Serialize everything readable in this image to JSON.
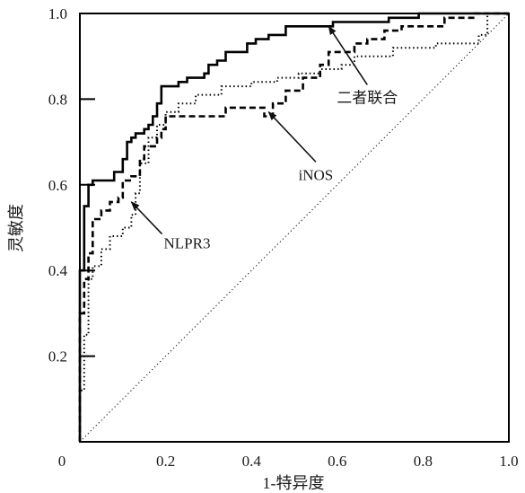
{
  "chart_data": {
    "type": "line",
    "xlabel": "1-特异度",
    "ylabel": "灵敏度",
    "xlim": [
      0,
      1
    ],
    "ylim": [
      0,
      1
    ],
    "x_ticks": [
      "0",
      "0.2",
      "0.4",
      "0.6",
      "0.8",
      "1.0"
    ],
    "y_ticks": [
      "0.2",
      "0.4",
      "0.6",
      "0.8",
      "1.0"
    ],
    "grid": false,
    "legend": "none",
    "series": [
      {
        "name": "二者联合",
        "style": "solid",
        "color": "#000000",
        "points": [
          [
            0,
            0
          ],
          [
            0,
            0.4
          ],
          [
            0.01,
            0.4
          ],
          [
            0.01,
            0.55
          ],
          [
            0.02,
            0.55
          ],
          [
            0.02,
            0.6
          ],
          [
            0.03,
            0.6
          ],
          [
            0.03,
            0.61
          ],
          [
            0.08,
            0.61
          ],
          [
            0.08,
            0.63
          ],
          [
            0.1,
            0.63
          ],
          [
            0.1,
            0.66
          ],
          [
            0.11,
            0.66
          ],
          [
            0.11,
            0.7
          ],
          [
            0.12,
            0.7
          ],
          [
            0.12,
            0.71
          ],
          [
            0.13,
            0.71
          ],
          [
            0.13,
            0.72
          ],
          [
            0.15,
            0.72
          ],
          [
            0.15,
            0.73
          ],
          [
            0.16,
            0.73
          ],
          [
            0.16,
            0.74
          ],
          [
            0.17,
            0.74
          ],
          [
            0.17,
            0.76
          ],
          [
            0.18,
            0.76
          ],
          [
            0.18,
            0.79
          ],
          [
            0.19,
            0.79
          ],
          [
            0.19,
            0.83
          ],
          [
            0.23,
            0.83
          ],
          [
            0.23,
            0.84
          ],
          [
            0.25,
            0.84
          ],
          [
            0.25,
            0.85
          ],
          [
            0.29,
            0.85
          ],
          [
            0.29,
            0.86
          ],
          [
            0.3,
            0.86
          ],
          [
            0.3,
            0.88
          ],
          [
            0.32,
            0.88
          ],
          [
            0.32,
            0.89
          ],
          [
            0.34,
            0.89
          ],
          [
            0.34,
            0.91
          ],
          [
            0.39,
            0.91
          ],
          [
            0.39,
            0.93
          ],
          [
            0.41,
            0.93
          ],
          [
            0.41,
            0.94
          ],
          [
            0.44,
            0.94
          ],
          [
            0.44,
            0.95
          ],
          [
            0.48,
            0.95
          ],
          [
            0.48,
            0.97
          ],
          [
            0.59,
            0.97
          ],
          [
            0.59,
            0.98
          ],
          [
            0.72,
            0.98
          ],
          [
            0.72,
            0.99
          ],
          [
            0.79,
            0.99
          ],
          [
            0.79,
            1.0
          ],
          [
            1.0,
            1.0
          ]
        ]
      },
      {
        "name": "iNOS",
        "style": "dashed",
        "color": "#000000",
        "points": [
          [
            0,
            0
          ],
          [
            0,
            0.3
          ],
          [
            0.01,
            0.3
          ],
          [
            0.01,
            0.38
          ],
          [
            0.02,
            0.38
          ],
          [
            0.02,
            0.44
          ],
          [
            0.03,
            0.44
          ],
          [
            0.03,
            0.52
          ],
          [
            0.05,
            0.52
          ],
          [
            0.05,
            0.54
          ],
          [
            0.07,
            0.54
          ],
          [
            0.07,
            0.56
          ],
          [
            0.09,
            0.56
          ],
          [
            0.09,
            0.57
          ],
          [
            0.1,
            0.57
          ],
          [
            0.1,
            0.61
          ],
          [
            0.12,
            0.61
          ],
          [
            0.12,
            0.62
          ],
          [
            0.14,
            0.62
          ],
          [
            0.14,
            0.66
          ],
          [
            0.15,
            0.66
          ],
          [
            0.15,
            0.69
          ],
          [
            0.18,
            0.69
          ],
          [
            0.18,
            0.71
          ],
          [
            0.19,
            0.71
          ],
          [
            0.19,
            0.73
          ],
          [
            0.2,
            0.73
          ],
          [
            0.2,
            0.76
          ],
          [
            0.34,
            0.76
          ],
          [
            0.34,
            0.78
          ],
          [
            0.43,
            0.78
          ],
          [
            0.43,
            0.76
          ],
          [
            0.45,
            0.76
          ],
          [
            0.45,
            0.79
          ],
          [
            0.48,
            0.79
          ],
          [
            0.48,
            0.82
          ],
          [
            0.52,
            0.82
          ],
          [
            0.52,
            0.85
          ],
          [
            0.56,
            0.85
          ],
          [
            0.56,
            0.88
          ],
          [
            0.58,
            0.88
          ],
          [
            0.58,
            0.91
          ],
          [
            0.64,
            0.91
          ],
          [
            0.64,
            0.93
          ],
          [
            0.67,
            0.93
          ],
          [
            0.67,
            0.94
          ],
          [
            0.71,
            0.94
          ],
          [
            0.71,
            0.96
          ],
          [
            0.75,
            0.96
          ],
          [
            0.75,
            0.97
          ],
          [
            0.85,
            0.97
          ],
          [
            0.85,
            0.99
          ],
          [
            0.92,
            0.99
          ],
          [
            0.92,
            1.0
          ],
          [
            1.0,
            1.0
          ]
        ]
      },
      {
        "name": "NLPR3",
        "style": "dotted",
        "color": "#000000",
        "points": [
          [
            0,
            0
          ],
          [
            0,
            0.12
          ],
          [
            0.01,
            0.12
          ],
          [
            0.01,
            0.25
          ],
          [
            0.02,
            0.25
          ],
          [
            0.02,
            0.38
          ],
          [
            0.03,
            0.38
          ],
          [
            0.03,
            0.41
          ],
          [
            0.05,
            0.41
          ],
          [
            0.05,
            0.45
          ],
          [
            0.07,
            0.45
          ],
          [
            0.07,
            0.48
          ],
          [
            0.1,
            0.48
          ],
          [
            0.1,
            0.5
          ],
          [
            0.12,
            0.5
          ],
          [
            0.12,
            0.53
          ],
          [
            0.13,
            0.53
          ],
          [
            0.13,
            0.58
          ],
          [
            0.14,
            0.58
          ],
          [
            0.14,
            0.65
          ],
          [
            0.16,
            0.65
          ],
          [
            0.16,
            0.71
          ],
          [
            0.18,
            0.71
          ],
          [
            0.18,
            0.74
          ],
          [
            0.2,
            0.74
          ],
          [
            0.2,
            0.77
          ],
          [
            0.23,
            0.77
          ],
          [
            0.23,
            0.79
          ],
          [
            0.27,
            0.79
          ],
          [
            0.27,
            0.81
          ],
          [
            0.33,
            0.81
          ],
          [
            0.33,
            0.83
          ],
          [
            0.4,
            0.83
          ],
          [
            0.4,
            0.84
          ],
          [
            0.46,
            0.84
          ],
          [
            0.46,
            0.85
          ],
          [
            0.51,
            0.85
          ],
          [
            0.51,
            0.86
          ],
          [
            0.56,
            0.86
          ],
          [
            0.56,
            0.87
          ],
          [
            0.61,
            0.87
          ],
          [
            0.61,
            0.88
          ],
          [
            0.64,
            0.88
          ],
          [
            0.64,
            0.9
          ],
          [
            0.73,
            0.9
          ],
          [
            0.73,
            0.92
          ],
          [
            0.83,
            0.92
          ],
          [
            0.83,
            0.93
          ],
          [
            0.93,
            0.93
          ],
          [
            0.93,
            0.95
          ],
          [
            0.95,
            0.95
          ],
          [
            0.95,
            1.0
          ],
          [
            1.0,
            1.0
          ]
        ]
      },
      {
        "name": "reference",
        "style": "dotted-thin",
        "color": "#000000",
        "points": [
          [
            0,
            0
          ],
          [
            1,
            1
          ]
        ]
      }
    ],
    "annotations": [
      {
        "label": "二者联合",
        "series": "二者联合",
        "target": [
          0.58,
          0.97
        ],
        "text_at": [
          0.67,
          0.8
        ]
      },
      {
        "label": "iNOS",
        "series": "iNOS",
        "target": [
          0.44,
          0.77
        ],
        "text_at": [
          0.55,
          0.62
        ]
      },
      {
        "label": "NLPR3",
        "series": "NLPR3",
        "target": [
          0.12,
          0.56
        ],
        "text_at": [
          0.25,
          0.46
        ]
      }
    ]
  }
}
